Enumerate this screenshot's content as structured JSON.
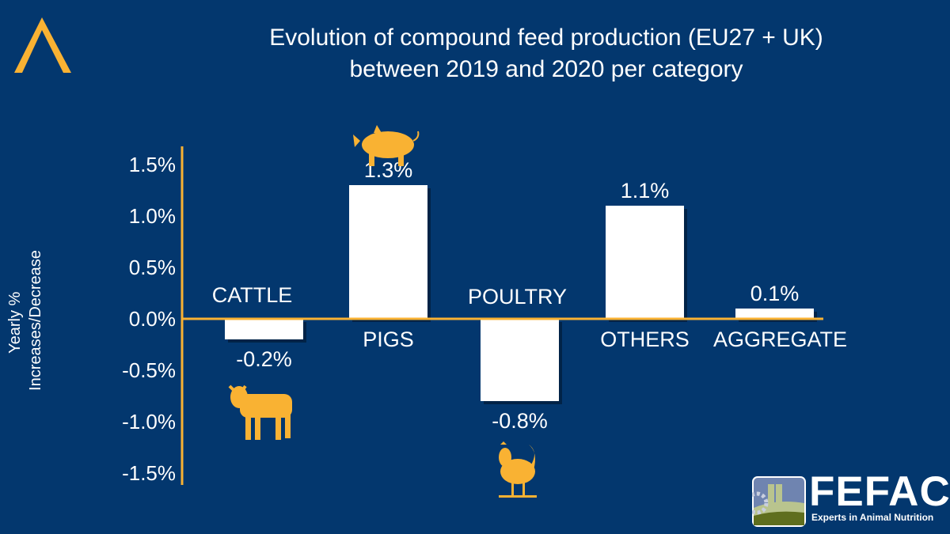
{
  "title_line1": "Evolution of compound feed production (EU27 + UK)",
  "title_line2": "between 2019 and 2020 per category",
  "brand": {
    "name": "FEFAC",
    "tagline": "Experts in Animal Nutrition"
  },
  "colors": {
    "background": "#03376E",
    "accent": "#F9B233",
    "bar": "#FFFFFF"
  },
  "chart_data": {
    "type": "bar",
    "categories": [
      "CATTLE",
      "PIGS",
      "POULTRY",
      "OTHERS",
      "AGGREGATE"
    ],
    "values": [
      -0.2,
      1.3,
      -0.8,
      1.1,
      0.1
    ],
    "data_labels": [
      "-0.2%",
      "1.3%",
      "-0.8%",
      "1.1%",
      "0.1%"
    ],
    "icons": [
      "cow-icon",
      "pig-icon",
      "chicken-icon",
      null,
      null
    ],
    "ylabel_line1": "Yearly %",
    "ylabel_line2": "Increases/Decrease",
    "yticks": [
      1.5,
      1.0,
      0.5,
      0.0,
      -0.5,
      -1.0,
      -1.5
    ],
    "ytick_labels": [
      "1.5%",
      "1.0%",
      "0.5%",
      "0.0%",
      "-0.5%",
      "-1.0%",
      "-1.5%"
    ],
    "ylim": [
      -1.6,
      1.7
    ],
    "grid": false,
    "legend": "none"
  }
}
